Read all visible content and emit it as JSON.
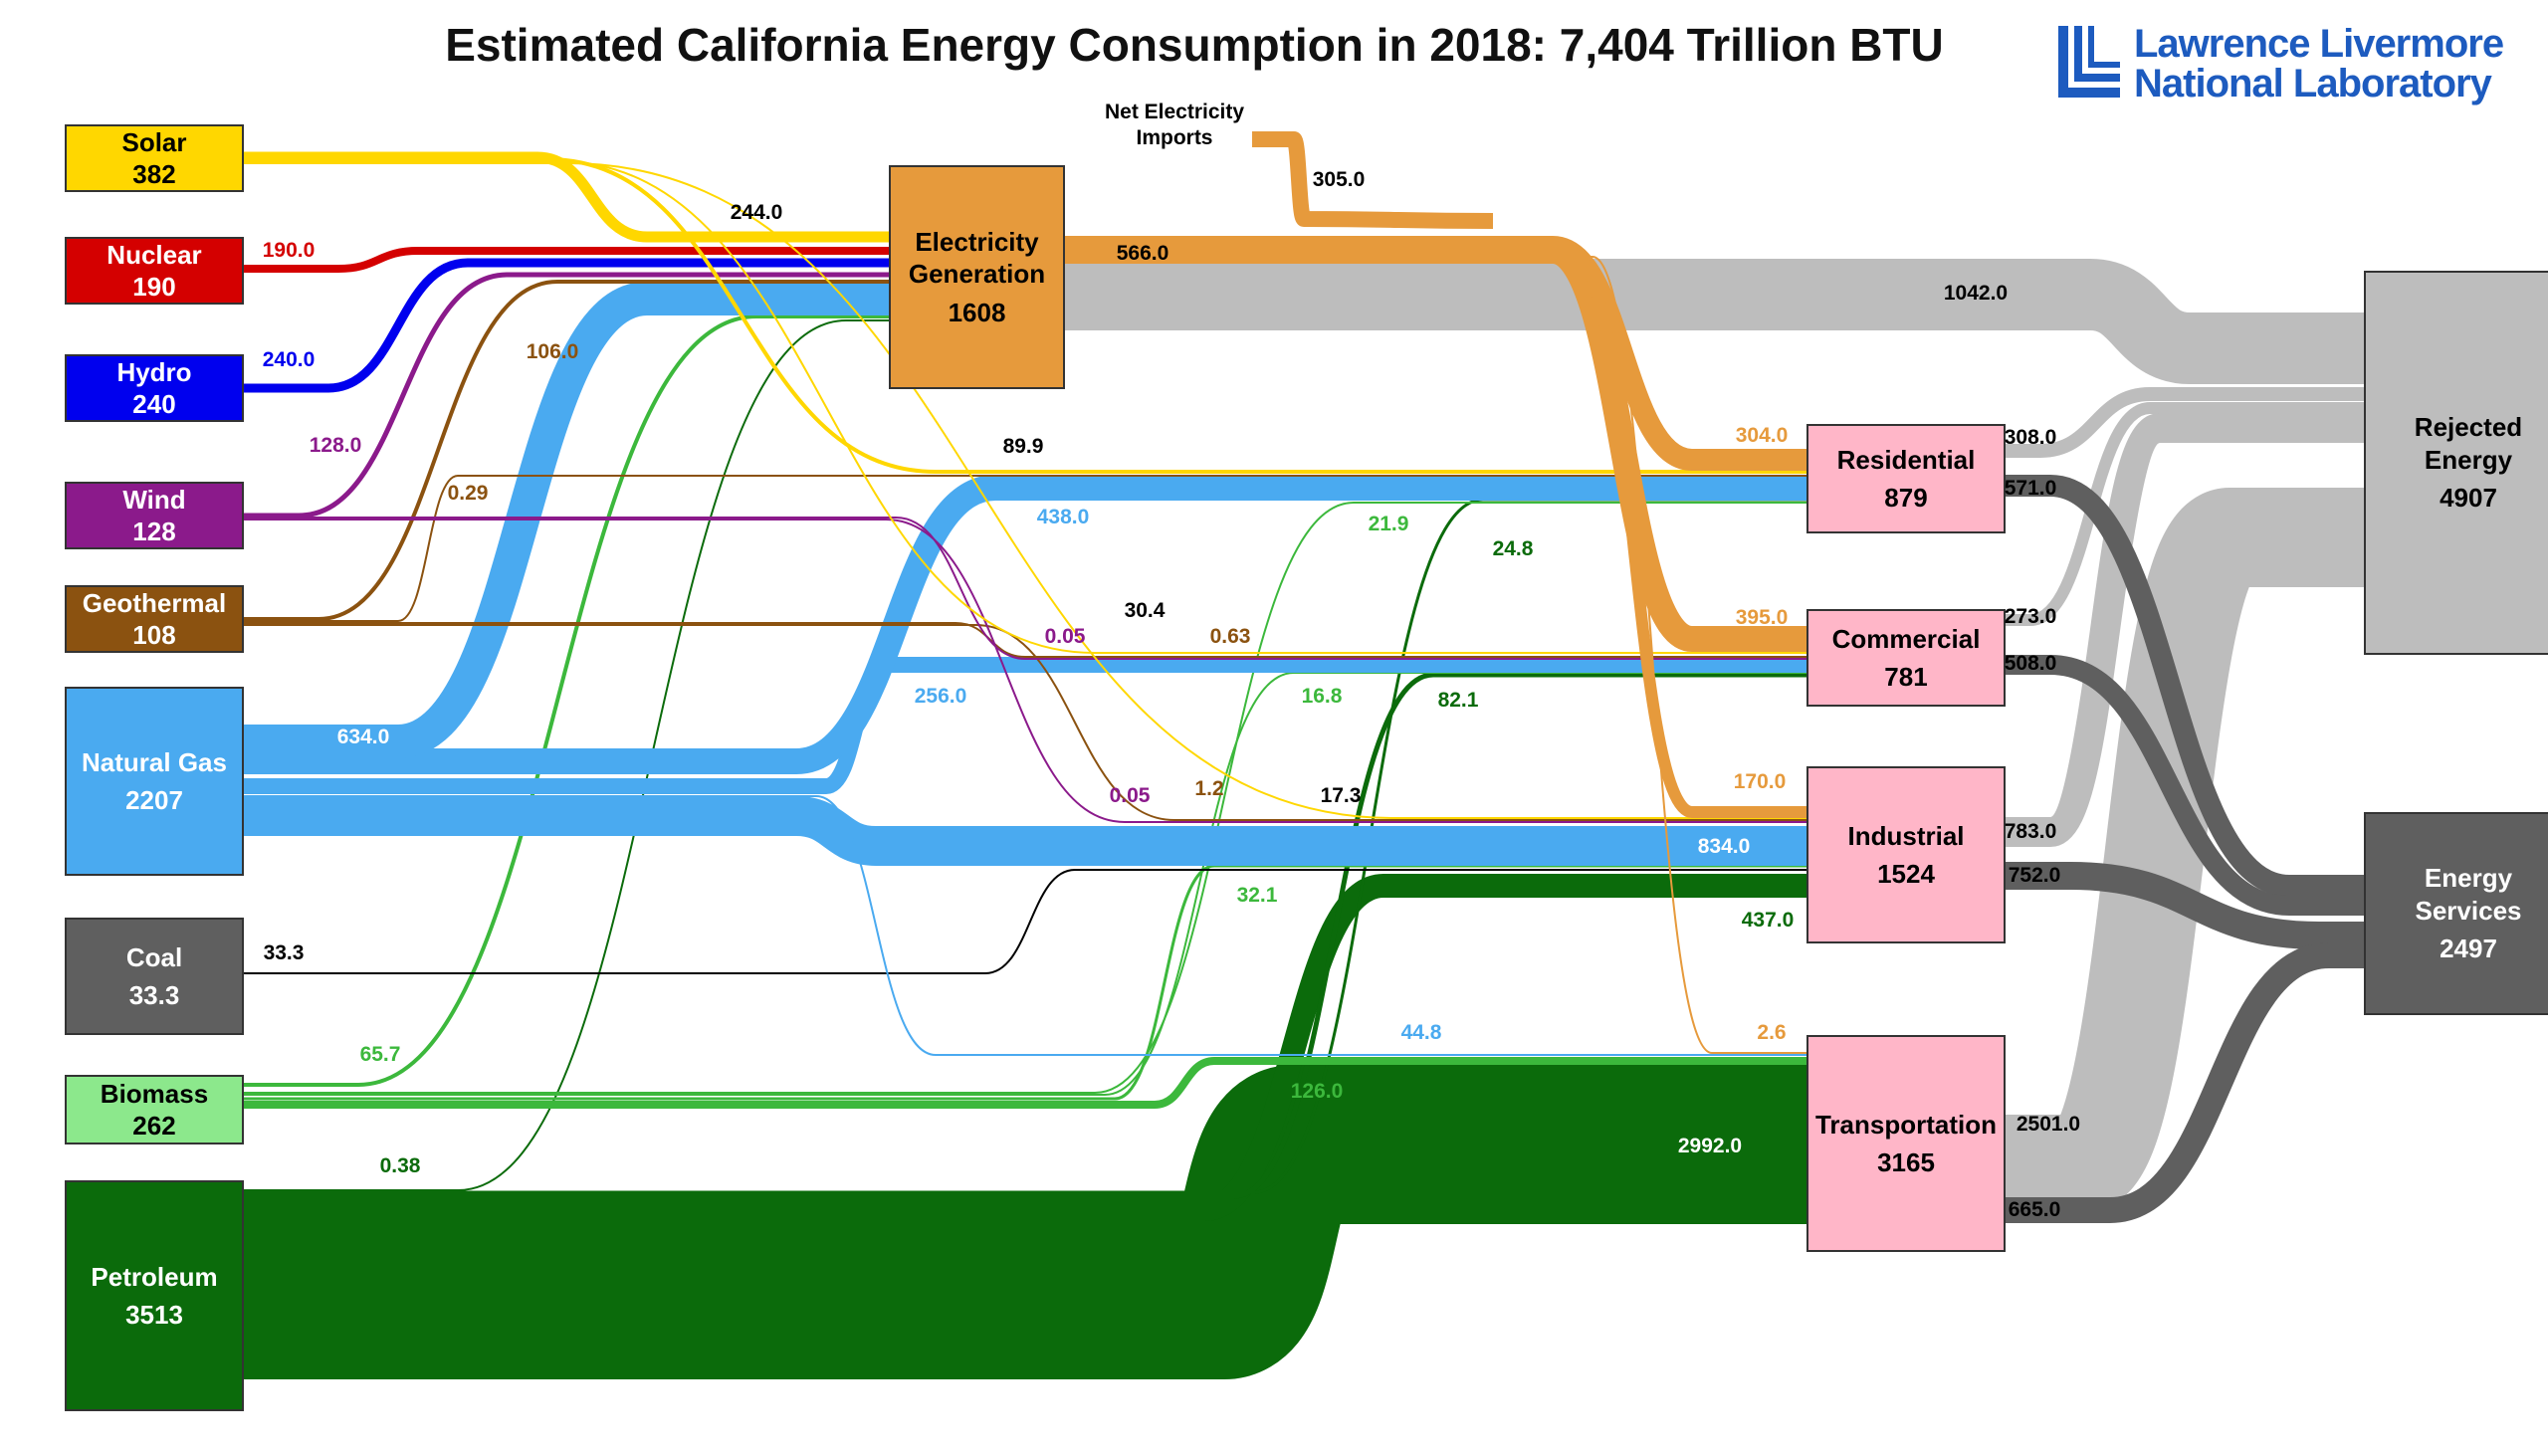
{
  "title": "Estimated California Energy Consumption in 2018: 7,404 Trillion BTU",
  "logo": {
    "line1": "Lawrence Livermore",
    "line2": "National Laboratory",
    "icon": "llnl-logo-icon",
    "color": "#1d5bbf"
  },
  "net_imports_label": "Net Electricity\nImports",
  "sources": [
    {
      "id": "solar",
      "name": "Solar",
      "value": "382",
      "color": "#ffd700"
    },
    {
      "id": "nuclear",
      "name": "Nuclear",
      "value": "190",
      "color": "#d40000"
    },
    {
      "id": "hydro",
      "name": "Hydro",
      "value": "240",
      "color": "#0000ee"
    },
    {
      "id": "wind",
      "name": "Wind",
      "value": "128",
      "color": "#8b1a8b"
    },
    {
      "id": "geothermal",
      "name": "Geothermal",
      "value": "108",
      "color": "#8b5210"
    },
    {
      "id": "natgas",
      "name": "Natural Gas",
      "value": "2207",
      "color": "#4aaaf0"
    },
    {
      "id": "coal",
      "name": "Coal",
      "value": "33.3",
      "color": "#5f5f5f"
    },
    {
      "id": "biomass",
      "name": "Biomass",
      "value": "262",
      "color": "#8ce88c"
    },
    {
      "id": "petroleum",
      "name": "Petroleum",
      "value": "3513",
      "color": "#0b6b0b"
    }
  ],
  "electricity": {
    "name": "Electricity\nGeneration",
    "value": "1608",
    "color": "#e69a3c"
  },
  "sectors": [
    {
      "id": "residential",
      "name": "Residential",
      "value": "879",
      "color": "#ffb6c8"
    },
    {
      "id": "commercial",
      "name": "Commercial",
      "value": "781",
      "color": "#ffb6c8"
    },
    {
      "id": "industrial",
      "name": "Industrial",
      "value": "1524",
      "color": "#ffb6c8"
    },
    {
      "id": "transportation",
      "name": "Transportation",
      "value": "3165",
      "color": "#ffb6c8"
    }
  ],
  "outputs": [
    {
      "id": "rejected",
      "name": "Rejected\nEnergy",
      "value": "4907",
      "color": "#bdbdbd"
    },
    {
      "id": "services",
      "name": "Energy\nServices",
      "value": "2497",
      "color": "#5f5f5f"
    }
  ],
  "flow_labels": [
    {
      "text": "244.0",
      "color": "#000000"
    },
    {
      "text": "190.0",
      "color": "#d40000"
    },
    {
      "text": "240.0",
      "color": "#0000ee"
    },
    {
      "text": "128.0",
      "color": "#8b1a8b"
    },
    {
      "text": "106.0",
      "color": "#8b5210"
    },
    {
      "text": "0.29",
      "color": "#8b5210"
    },
    {
      "text": "634.0",
      "color": "#ffffff"
    },
    {
      "text": "33.3",
      "color": "#000000"
    },
    {
      "text": "65.7",
      "color": "#3cb83c"
    },
    {
      "text": "0.38",
      "color": "#0b6b0b"
    },
    {
      "text": "305.0",
      "color": "#000000"
    },
    {
      "text": "566.0",
      "color": "#000000"
    },
    {
      "text": "1042.0",
      "color": "#000000"
    },
    {
      "text": "89.9",
      "color": "#000000"
    },
    {
      "text": "438.0",
      "color": "#4aaaf0"
    },
    {
      "text": "21.9",
      "color": "#3cb83c"
    },
    {
      "text": "24.8",
      "color": "#0b6b0b"
    },
    {
      "text": "30.4",
      "color": "#000000"
    },
    {
      "text": "0.05",
      "color": "#8b1a8b"
    },
    {
      "text": "0.63",
      "color": "#8b5210"
    },
    {
      "text": "256.0",
      "color": "#4aaaf0"
    },
    {
      "text": "16.8",
      "color": "#3cb83c"
    },
    {
      "text": "82.1",
      "color": "#0b6b0b"
    },
    {
      "text": "0.05",
      "color": "#8b1a8b"
    },
    {
      "text": "1.2",
      "color": "#8b5210"
    },
    {
      "text": "17.3",
      "color": "#000000"
    },
    {
      "text": "32.1",
      "color": "#3cb83c"
    },
    {
      "text": "44.8",
      "color": "#4aaaf0"
    },
    {
      "text": "126.0",
      "color": "#3cb83c"
    },
    {
      "text": "304.0",
      "color": "#e69a3c"
    },
    {
      "text": "395.0",
      "color": "#e69a3c"
    },
    {
      "text": "170.0",
      "color": "#e69a3c"
    },
    {
      "text": "2.6",
      "color": "#e69a3c"
    },
    {
      "text": "834.0",
      "color": "#ffffff"
    },
    {
      "text": "437.0",
      "color": "#0b6b0b"
    },
    {
      "text": "2992.0",
      "color": "#ffffff"
    },
    {
      "text": "308.0",
      "color": "#000000"
    },
    {
      "text": "571.0",
      "color": "#000000"
    },
    {
      "text": "273.0",
      "color": "#000000"
    },
    {
      "text": "508.0",
      "color": "#000000"
    },
    {
      "text": "783.0",
      "color": "#000000"
    },
    {
      "text": "752.0",
      "color": "#000000"
    },
    {
      "text": "2501.0",
      "color": "#000000"
    },
    {
      "text": "665.0",
      "color": "#000000"
    }
  ]
}
